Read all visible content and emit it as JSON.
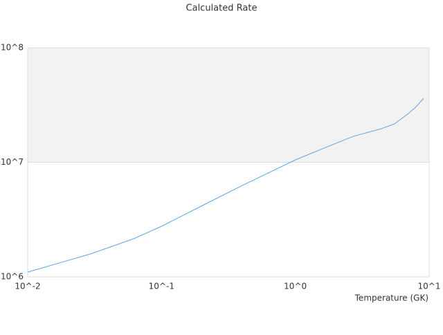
{
  "chart_data": {
    "type": "line",
    "title": "Calculated Rate",
    "x_label": "Temperature (GK)",
    "log_x": true,
    "log_y": true,
    "xlim": [
      0.01,
      10
    ],
    "ylim": [
      1000000,
      100000000
    ],
    "xticks": [
      {
        "value": 0.01,
        "label": "10^-2"
      },
      {
        "value": 0.1,
        "label": "10^-1"
      },
      {
        "value": 1,
        "label": "10^0"
      },
      {
        "value": 10,
        "label": "10^1"
      }
    ],
    "yticks": [
      {
        "value": 1000000,
        "label": "10^6"
      },
      {
        "value": 10000000,
        "label": "10^7"
      },
      {
        "value": 100000000,
        "label": "10^8"
      }
    ],
    "series": [
      {
        "color": "#5da5e6",
        "x": [
          0.01,
          0.0204,
          0.0292,
          0.0618,
          0.1,
          0.222,
          0.402,
          1.0,
          1.69,
          2.72,
          4.37,
          5.5,
          7.0,
          7.9,
          9.1
        ],
        "values": [
          1100000,
          1400000,
          1580000,
          2150000,
          2760000,
          4430000,
          6280000,
          10500000,
          13500000,
          16900000,
          19600000,
          21600000,
          26700000,
          30200000,
          36200000
        ]
      }
    ]
  }
}
